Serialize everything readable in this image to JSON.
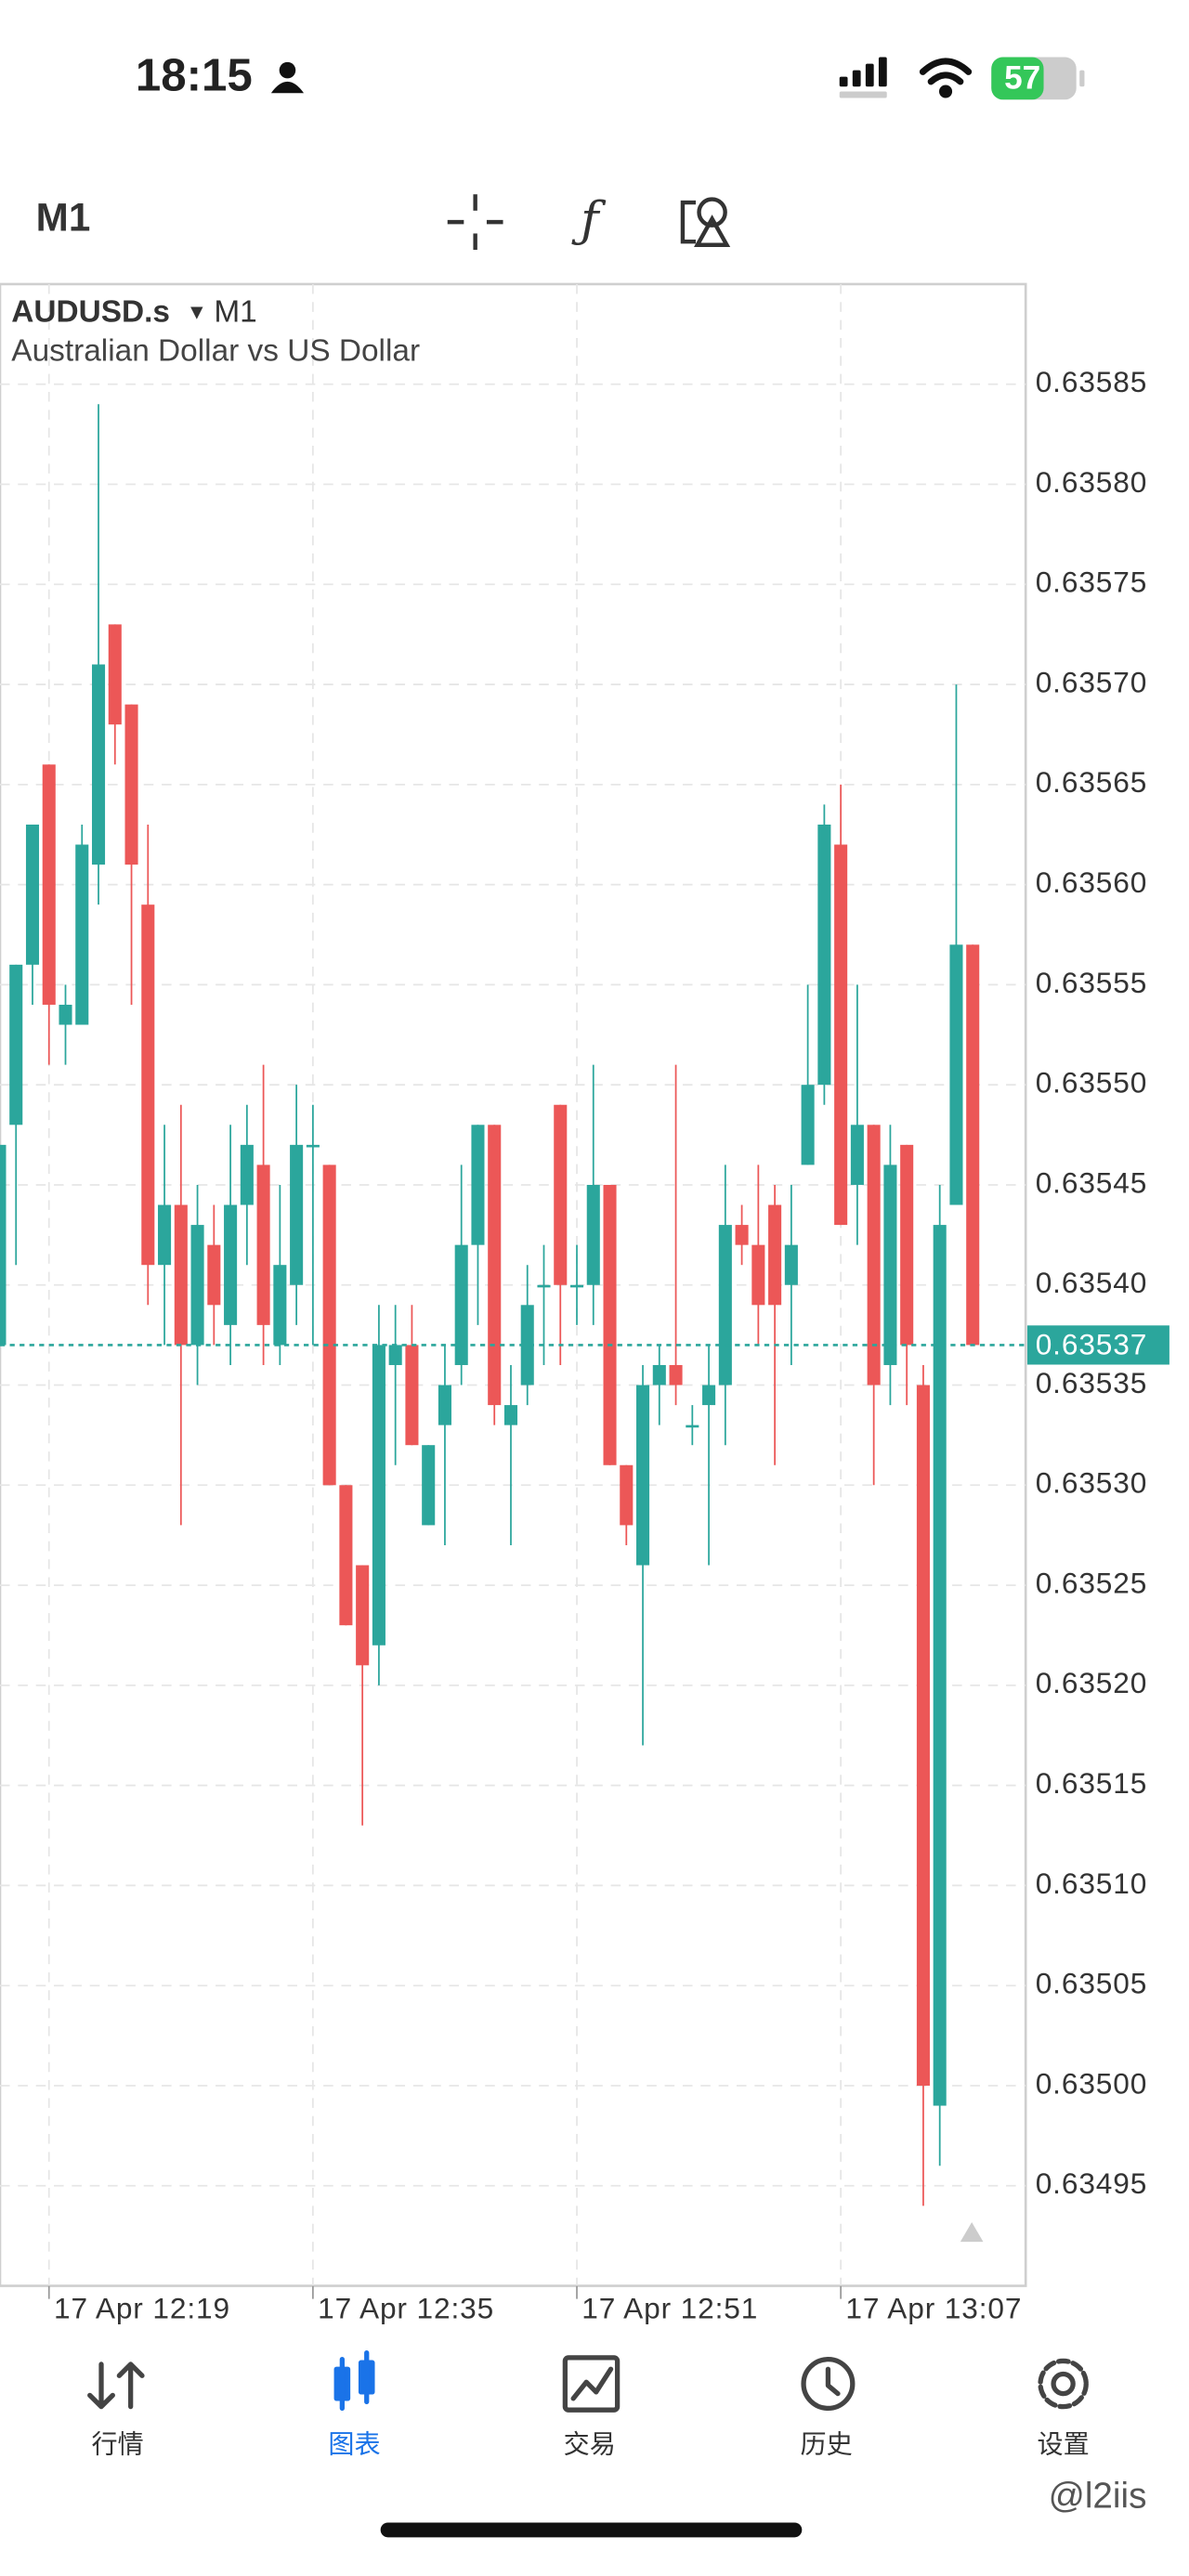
{
  "status_bar": {
    "time": "18:15",
    "battery": "57"
  },
  "toolbar": {
    "timeframe": "M1"
  },
  "chart_header": {
    "symbol": "AUDUSD.s",
    "timeframe": "M1",
    "description": "Australian Dollar vs US Dollar"
  },
  "chart_data": {
    "type": "candlestick",
    "categories": [
      null,
      null,
      null,
      "17 Apr 12:19",
      null,
      null,
      null,
      null,
      null,
      null,
      null,
      null,
      null,
      null,
      null,
      null,
      null,
      null,
      null,
      "17 Apr 12:35",
      null,
      null,
      null,
      null,
      null,
      null,
      null,
      null,
      null,
      null,
      null,
      null,
      null,
      null,
      null,
      "17 Apr 12:51",
      null,
      null,
      null,
      null,
      null,
      null,
      null,
      null,
      null,
      null,
      null,
      null,
      null,
      null,
      null,
      "17 Apr 13:07",
      null,
      null,
      null,
      null,
      null,
      null,
      null,
      null
    ],
    "open": [
      0.63537,
      0.63548,
      0.63556,
      0.63566,
      0.63553,
      0.63553,
      0.63561,
      0.63573,
      0.63569,
      0.63559,
      0.63541,
      0.63544,
      0.63537,
      0.63542,
      0.63538,
      0.63544,
      0.63546,
      0.63537,
      0.6354,
      0.63547,
      0.63546,
      0.6353,
      0.63526,
      0.63522,
      0.63536,
      0.63537,
      0.63528,
      0.63533,
      0.63536,
      0.63542,
      0.63548,
      0.63533,
      0.63535,
      0.6354,
      0.63549,
      0.6354,
      0.6354,
      0.63545,
      0.63531,
      0.63526,
      0.63535,
      0.63536,
      0.63533,
      0.63534,
      0.63535,
      0.63543,
      0.63542,
      0.63544,
      0.6354,
      0.63546,
      0.6355,
      0.63562,
      0.63545,
      0.63548,
      0.63536,
      0.63547,
      0.63535,
      0.63499,
      0.63544,
      0.63557
    ],
    "high": [
      0.63547,
      0.63556,
      0.63563,
      0.63566,
      0.63555,
      0.63563,
      0.63584,
      0.63573,
      0.63569,
      0.63563,
      0.63548,
      0.63549,
      0.63545,
      0.63544,
      0.63548,
      0.63549,
      0.63551,
      0.63545,
      0.6355,
      0.63549,
      0.63546,
      0.6353,
      0.63526,
      0.63539,
      0.63539,
      0.63539,
      0.63532,
      0.63537,
      0.63546,
      0.63548,
      0.63548,
      0.63536,
      0.63541,
      0.63542,
      0.63549,
      0.63542,
      0.63551,
      0.63545,
      0.63531,
      0.63536,
      0.63537,
      0.63551,
      0.63534,
      0.63537,
      0.63546,
      0.63544,
      0.63546,
      0.63545,
      0.63545,
      0.63555,
      0.63564,
      0.63565,
      0.63555,
      0.63548,
      0.63548,
      0.63547,
      0.63536,
      0.63545,
      0.6357,
      0.63557
    ],
    "low": [
      0.63537,
      0.63541,
      0.63554,
      0.63551,
      0.63551,
      0.63553,
      0.63559,
      0.63566,
      0.63554,
      0.63539,
      0.63537,
      0.63528,
      0.63535,
      0.63537,
      0.63536,
      0.63541,
      0.63536,
      0.63536,
      0.63538,
      0.63537,
      0.6353,
      0.63523,
      0.63513,
      0.6352,
      0.63531,
      0.63532,
      0.63528,
      0.63527,
      0.63535,
      0.63538,
      0.63533,
      0.63527,
      0.63534,
      0.63536,
      0.63536,
      0.63538,
      0.63538,
      0.63531,
      0.63527,
      0.63517,
      0.63533,
      0.63534,
      0.63532,
      0.63526,
      0.63532,
      0.63541,
      0.63537,
      0.63531,
      0.63536,
      0.63546,
      0.63549,
      0.63543,
      0.63542,
      0.6353,
      0.63534,
      0.63534,
      0.63494,
      0.63496,
      0.63544,
      0.63537
    ],
    "close": [
      0.63547,
      0.63556,
      0.63563,
      0.63554,
      0.63554,
      0.63562,
      0.63571,
      0.63568,
      0.63561,
      0.63541,
      0.63544,
      0.63537,
      0.63543,
      0.63539,
      0.63544,
      0.63547,
      0.63538,
      0.63541,
      0.63547,
      0.63547,
      0.6353,
      0.63523,
      0.63521,
      0.63537,
      0.63537,
      0.63532,
      0.63532,
      0.63535,
      0.63542,
      0.63548,
      0.63534,
      0.63534,
      0.63539,
      0.6354,
      0.6354,
      0.6354,
      0.63545,
      0.63531,
      0.63528,
      0.63535,
      0.63536,
      0.63535,
      0.63533,
      0.63535,
      0.63543,
      0.63542,
      0.63539,
      0.63539,
      0.63542,
      0.6355,
      0.63563,
      0.63543,
      0.63548,
      0.63535,
      0.63546,
      0.63537,
      0.635,
      0.63543,
      0.63557,
      0.63537
    ],
    "up_color": "#2ba69c",
    "down_color": "#ec5757",
    "last_price": 0.63537,
    "ylim": [
      0.6349,
      0.6359
    ],
    "yticks": [
      0.63585,
      {
        "value": 0.6358,
        "label": "0.63580"
      },
      0.63575,
      {
        "value": 0.6357,
        "label": "0.63570"
      },
      0.63565,
      {
        "value": 0.6356,
        "label": "0.63560"
      },
      0.63555,
      {
        "value": 0.6355,
        "label": "0.63550"
      },
      0.63545,
      {
        "value": 0.6354,
        "label": "0.63540"
      },
      0.63535,
      {
        "value": 0.6353,
        "label": "0.63530"
      },
      0.63525,
      {
        "value": 0.6352,
        "label": "0.63520"
      },
      0.63515,
      {
        "value": 0.6351,
        "label": "0.63510"
      },
      0.63505,
      {
        "value": 0.635,
        "label": "0.63500"
      },
      0.63495
    ],
    "grid": true
  },
  "tab_bar": {
    "tabs": [
      "行情",
      "图表",
      "交易",
      "历史",
      "设置"
    ],
    "active": 1
  },
  "watermark": "@l2iis"
}
